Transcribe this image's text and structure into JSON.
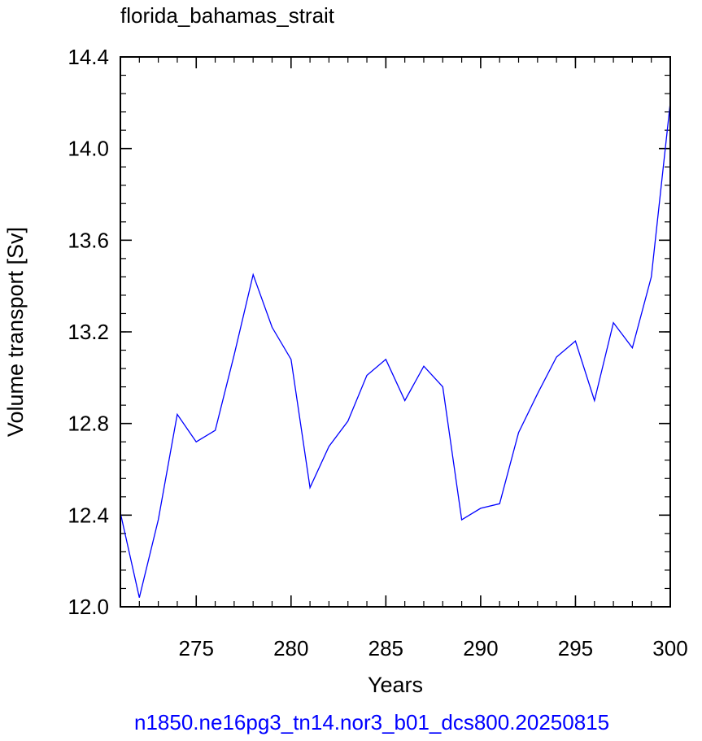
{
  "chart_data": {
    "type": "line",
    "title": "florida_bahamas_strait",
    "xlabel": "Years",
    "ylabel": "Volume transport [Sv]",
    "xlim": [
      271,
      300
    ],
    "ylim": [
      12.0,
      14.4
    ],
    "xticks": [
      "275",
      "280",
      "285",
      "290",
      "295",
      "300"
    ],
    "xtick_values": [
      275,
      280,
      285,
      290,
      295,
      300
    ],
    "yticks": [
      "12.0",
      "12.4",
      "12.8",
      "13.2",
      "13.6",
      "14.0",
      "14.4"
    ],
    "ytick_values": [
      12.0,
      12.4,
      12.8,
      13.2,
      13.6,
      14.0,
      14.4
    ],
    "grid": false,
    "line_color": "#0000ff",
    "series": [
      {
        "x": [
          271,
          272,
          273,
          274,
          275,
          276,
          277,
          278,
          279,
          280,
          281,
          282,
          283,
          284,
          285,
          286,
          287,
          288,
          289,
          290,
          291,
          292,
          293,
          294,
          295,
          296,
          297,
          298,
          299,
          300
        ],
        "values": [
          12.41,
          12.04,
          12.38,
          12.84,
          12.72,
          12.77,
          13.1,
          13.45,
          13.22,
          13.08,
          12.52,
          12.7,
          12.81,
          13.01,
          13.08,
          12.9,
          13.05,
          12.96,
          12.38,
          12.43,
          12.45,
          12.76,
          12.93,
          13.09,
          13.16,
          12.9,
          13.24,
          13.13,
          13.44,
          14.2
        ]
      }
    ]
  },
  "footer": {
    "case_name": "n1850.ne16pg3_tn14.nor3_b01_dcs800.20250815"
  }
}
